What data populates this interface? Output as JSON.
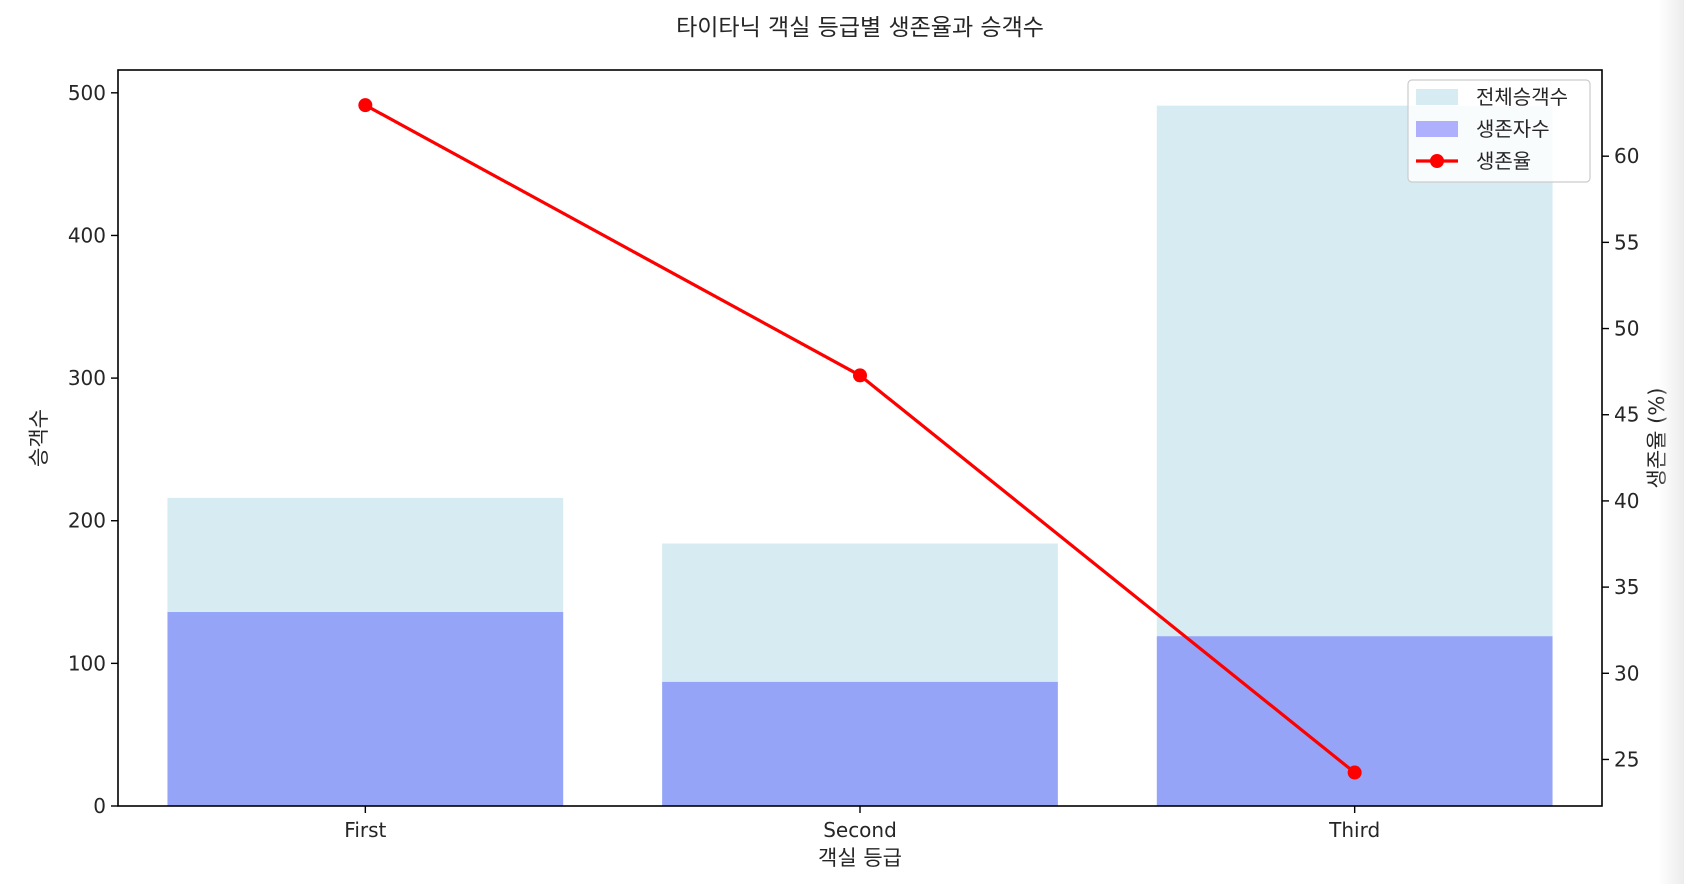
{
  "chart_data": {
    "type": "bar",
    "title": "타이타닉 객실 등급별 생존율과 승객수",
    "xlabel": "객실 등급",
    "ylabel": "승객수",
    "y2label": "생존율 (%)",
    "categories": [
      "First",
      "Second",
      "Third"
    ],
    "series": [
      {
        "name": "전체승객수",
        "type": "bar",
        "axis": "left",
        "values": [
          216,
          184,
          491
        ],
        "color": "#add8e6",
        "alpha": 0.5
      },
      {
        "name": "생존자수",
        "type": "bar",
        "axis": "left",
        "values": [
          136,
          87,
          119
        ],
        "color": "#0000ff",
        "alpha": 0.3
      },
      {
        "name": "생존율",
        "type": "line",
        "axis": "right",
        "values": [
          62.96,
          47.28,
          24.24
        ],
        "color": "#ff0000",
        "marker": "circle"
      }
    ],
    "ylim": [
      0,
      516
    ],
    "yticks": [
      0,
      100,
      200,
      300,
      400,
      500
    ],
    "y2lim": [
      22.3,
      65.0
    ],
    "y2ticks": [
      25,
      30,
      35,
      40,
      45,
      50,
      55,
      60
    ],
    "legend_position": "top-right",
    "grid": false
  }
}
